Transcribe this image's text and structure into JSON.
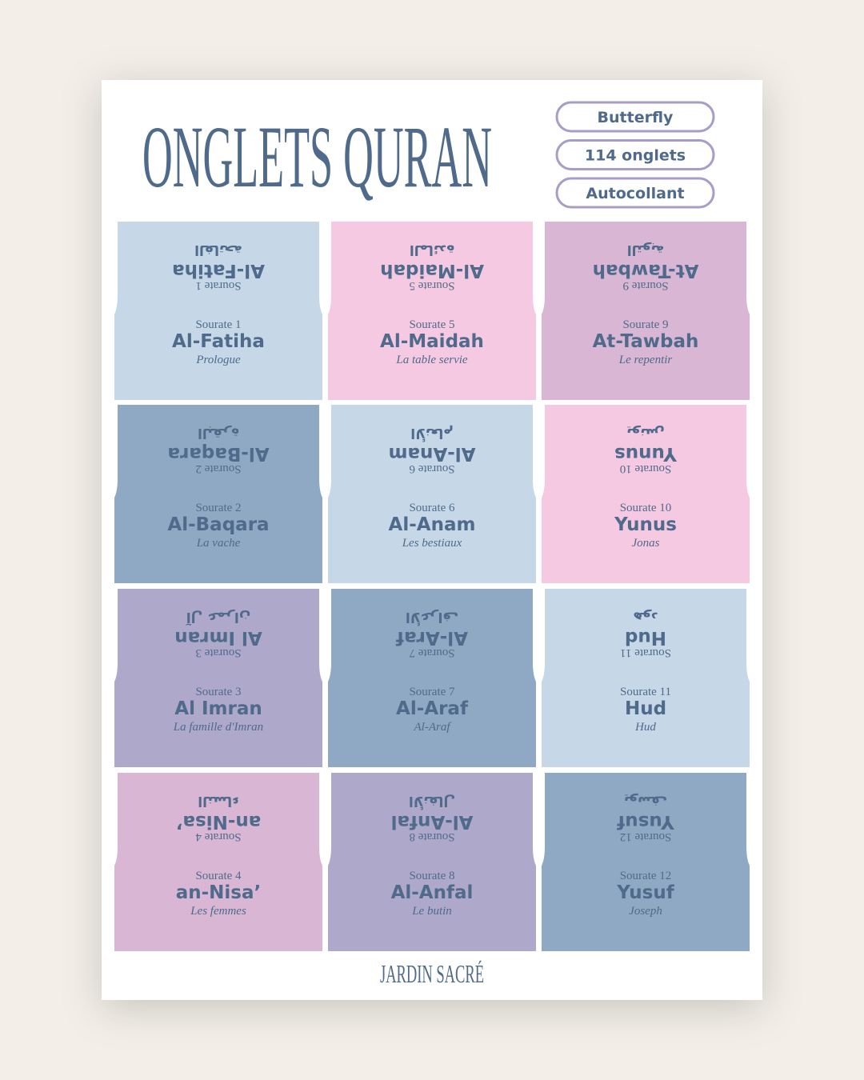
{
  "header": {
    "title": "ONGLETS QURAN",
    "badges": [
      "Butterfly",
      "114 onglets",
      "Autocollant"
    ]
  },
  "tabs": [
    {
      "sourate": "Sourate 1",
      "name": "Al-Fatiha",
      "arabic": "الفاتحة",
      "meaning": "Prologue",
      "color": "#c6d8e7"
    },
    {
      "sourate": "Sourate 5",
      "name": "Al-Maidah",
      "arabic": "المائدة",
      "meaning": "La table servie",
      "color": "#f5c9e1"
    },
    {
      "sourate": "Sourate 9",
      "name": "At-Tawbah",
      "arabic": "التوبة",
      "meaning": "Le repentir",
      "color": "#d8b6d4"
    },
    {
      "sourate": "Sourate 2",
      "name": "Al-Baqara",
      "arabic": "البقرة",
      "meaning": "La vache",
      "color": "#8fa8c3"
    },
    {
      "sourate": "Sourate 6",
      "name": "Al-Anam",
      "arabic": "الأنعام",
      "meaning": "Les bestiaux",
      "color": "#c6d8e7"
    },
    {
      "sourate": "Sourate 10",
      "name": "Yunus",
      "arabic": "يونس",
      "meaning": "Jonas",
      "color": "#f5c9e1"
    },
    {
      "sourate": "Sourate 3",
      "name": "Al Imran",
      "arabic": "آل عمران",
      "meaning": "La famille d'Imran",
      "color": "#aea8ca"
    },
    {
      "sourate": "Sourate 7",
      "name": "Al-Araf",
      "arabic": "الأعراف",
      "meaning": "Al-Araf",
      "color": "#8fa8c3"
    },
    {
      "sourate": "Sourate 11",
      "name": "Hud",
      "arabic": "هود",
      "meaning": "Hud",
      "color": "#c6d8e7"
    },
    {
      "sourate": "Sourate 4",
      "name": "an-Nisa’",
      "arabic": "النساء",
      "meaning": "Les femmes",
      "color": "#d8b6d4"
    },
    {
      "sourate": "Sourate 8",
      "name": "Al-Anfal",
      "arabic": "الأنفال",
      "meaning": "Le butin",
      "color": "#aea8ca"
    },
    {
      "sourate": "Sourate 12",
      "name": "Yusuf",
      "arabic": "يوسف",
      "meaning": "Joseph",
      "color": "#8fa8c3"
    }
  ],
  "footer": {
    "brand": "JARDIN SACRÉ"
  }
}
